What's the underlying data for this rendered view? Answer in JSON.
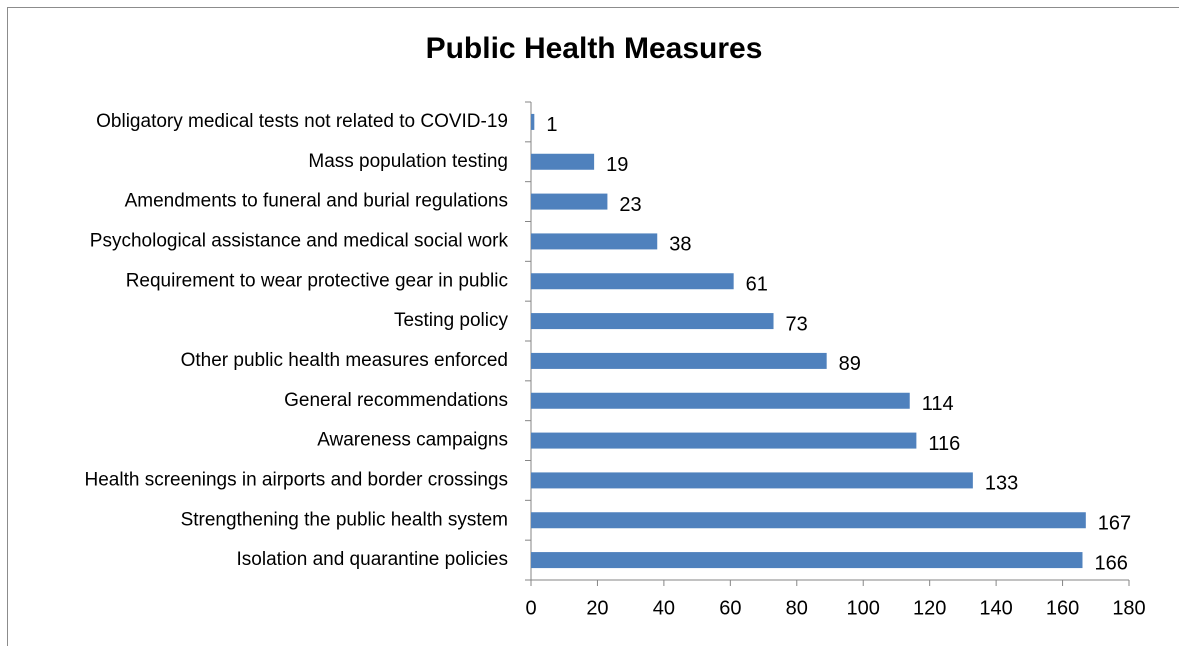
{
  "chart_data": {
    "type": "bar",
    "orientation": "horizontal",
    "title": "Public Health Measures",
    "categories": [
      "Obligatory medical tests not related to COVID-19",
      "Mass population testing",
      "Amendments to funeral and burial regulations",
      "Psychological assistance and medical social work",
      "Requirement to wear protective gear in public",
      "Testing policy",
      "Other public health measures enforced",
      "General recommendations",
      "Awareness campaigns",
      "Health screenings in airports and border crossings",
      "Strengthening the public health system",
      "Isolation and quarantine policies"
    ],
    "values": [
      1,
      19,
      23,
      38,
      61,
      73,
      89,
      114,
      116,
      133,
      167,
      166
    ],
    "color": "#4f81bd",
    "xlim": [
      0,
      180
    ],
    "xticks": [
      0,
      20,
      40,
      60,
      80,
      100,
      120,
      140,
      160,
      180
    ],
    "grid": false
  }
}
